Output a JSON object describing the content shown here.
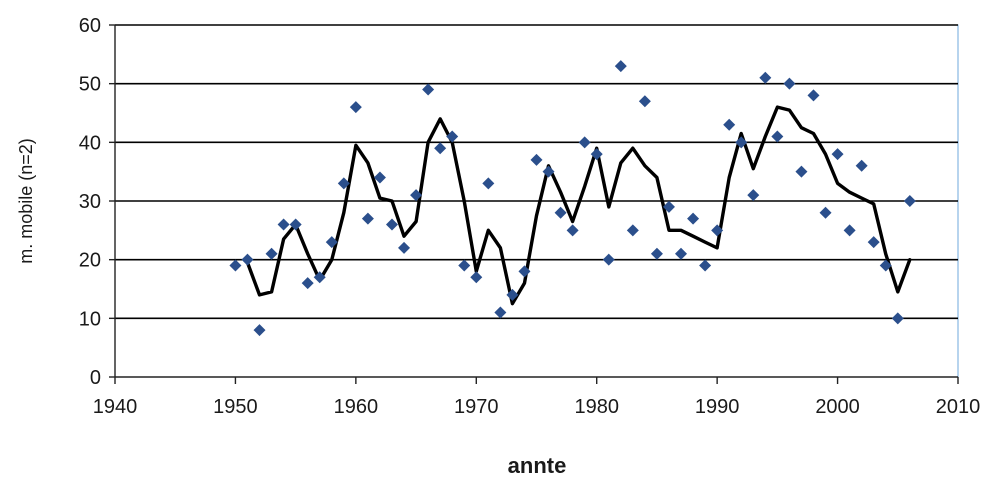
{
  "chart_data": {
    "type": "scatter",
    "title": "",
    "xlabel": "annte",
    "ylabel": "m. mobile (n=2)",
    "xlim": [
      1940,
      2010
    ],
    "ylim": [
      0,
      60
    ],
    "xticks": [
      1940,
      1950,
      1960,
      1970,
      1980,
      1990,
      2000,
      2010
    ],
    "yticks": [
      0,
      10,
      20,
      30,
      40,
      50,
      60
    ],
    "grid": "horizontal",
    "legend": "none",
    "colors": {
      "points": "#2b4f8c",
      "line": "#000000",
      "grid": "#000000",
      "frame": "#6fa8dc"
    },
    "series": [
      {
        "kind": "points",
        "x": [
          1950,
          1951,
          1952,
          1953,
          1954,
          1955,
          1956,
          1957,
          1958,
          1959,
          1960,
          1961,
          1962,
          1963,
          1964,
          1965,
          1966,
          1967,
          1968,
          1969,
          1970,
          1971,
          1972,
          1973,
          1974,
          1975,
          1976,
          1977,
          1978,
          1979,
          1980,
          1981,
          1982,
          1983,
          1984,
          1985,
          1986,
          1987,
          1988,
          1989,
          1990,
          1991,
          1992,
          1993,
          1994,
          1995,
          1996,
          1997,
          1998,
          1999,
          2000,
          2001,
          2002,
          2003,
          2004,
          2005,
          2006
        ],
        "y": [
          19,
          20,
          8,
          21,
          26,
          26,
          16,
          17,
          23,
          33,
          46,
          27,
          34,
          26,
          22,
          31,
          49,
          39,
          41,
          19,
          17,
          33,
          11,
          14,
          18,
          37,
          35,
          28,
          25,
          40,
          38,
          20,
          53,
          25,
          47,
          21,
          29,
          21,
          27,
          19,
          25,
          43,
          40,
          31,
          51,
          41,
          50,
          35,
          48,
          28,
          38,
          25,
          36,
          23,
          19,
          10,
          30
        ]
      },
      {
        "kind": "line",
        "x": [
          1951,
          1952,
          1953,
          1954,
          1955,
          1956,
          1957,
          1958,
          1959,
          1960,
          1961,
          1962,
          1963,
          1964,
          1965,
          1966,
          1967,
          1968,
          1969,
          1970,
          1971,
          1972,
          1973,
          1974,
          1975,
          1976,
          1977,
          1978,
          1979,
          1980,
          1981,
          1982,
          1983,
          1984,
          1985,
          1986,
          1987,
          1988,
          1989,
          1990,
          1991,
          1992,
          1993,
          1994,
          1995,
          1996,
          1997,
          1998,
          1999,
          2000,
          2001,
          2002,
          2003,
          2004,
          2005,
          2006
        ],
        "y": [
          19.5,
          14,
          14.5,
          23.5,
          26,
          21,
          16.5,
          20,
          28,
          39.5,
          36.5,
          30.5,
          30,
          24,
          26.5,
          40,
          44,
          40,
          30,
          18,
          25,
          22,
          12.5,
          16,
          27.5,
          36,
          31.5,
          26.5,
          32.5,
          39,
          29,
          36.5,
          39,
          36,
          34,
          25,
          25,
          24,
          23,
          22,
          34,
          41.5,
          35.5,
          41,
          46,
          45.5,
          42.5,
          41.5,
          38,
          33,
          31.5,
          30.5,
          29.5,
          21,
          14.5,
          20
        ]
      }
    ]
  }
}
